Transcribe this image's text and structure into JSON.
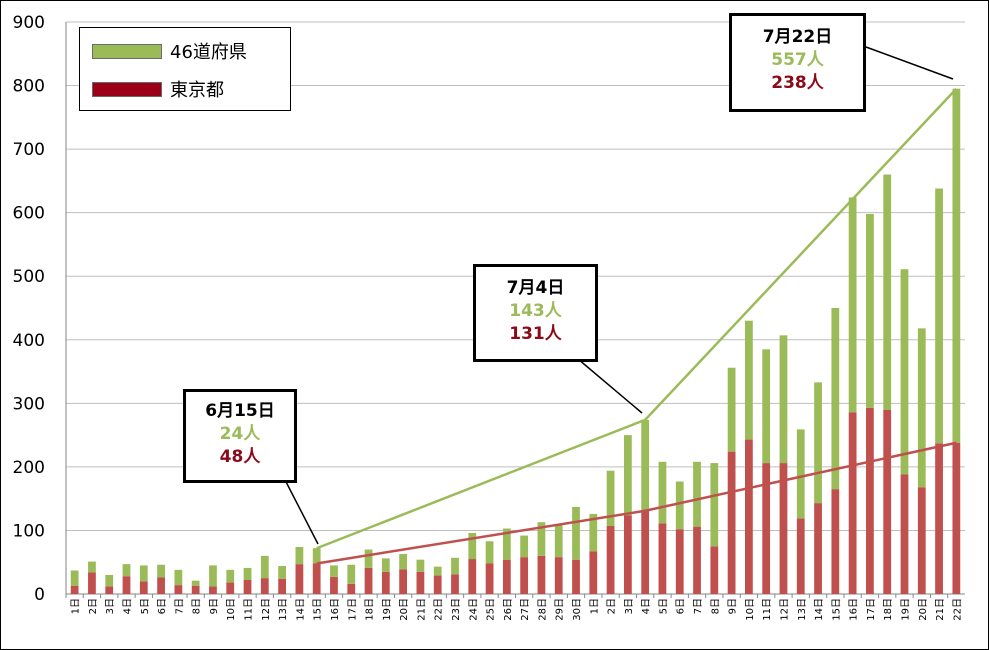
{
  "colors": {
    "prefectures": "#9bbb59",
    "tokyo": "#c0504d",
    "tokyo_text": "#8b0a1a",
    "grid": "#bfbfbf"
  },
  "legend": {
    "items": [
      {
        "label": "46道府県",
        "color": "#9bbb59"
      },
      {
        "label": "東京都",
        "color": "#9b0018"
      }
    ]
  },
  "callouts": [
    {
      "date": "6月15日",
      "prefectures": "24人",
      "tokyo": "48人"
    },
    {
      "date": "7月4日",
      "prefectures": "143人",
      "tokyo": "131人"
    },
    {
      "date": "7月22日",
      "prefectures": "557人",
      "tokyo": "238人"
    }
  ],
  "chart_data": {
    "type": "bar",
    "stacked": true,
    "ylim": [
      0,
      900
    ],
    "yticks": [
      0,
      100,
      200,
      300,
      400,
      500,
      600,
      700,
      800,
      900
    ],
    "grid": true,
    "legend_position": "top-left",
    "categories": [
      "1日",
      "2日",
      "3日",
      "4日",
      "5日",
      "6日",
      "7日",
      "8日",
      "9日",
      "10日",
      "11日",
      "12日",
      "13日",
      "14日",
      "15日",
      "16日",
      "17日",
      "18日",
      "19日",
      "20日",
      "21日",
      "22日",
      "23日",
      "24日",
      "25日",
      "26日",
      "27日",
      "28日",
      "29日",
      "30日",
      "1日",
      "2日",
      "3日",
      "4日",
      "5日",
      "6日",
      "7日",
      "8日",
      "9日",
      "10日",
      "11日",
      "12日",
      "13日",
      "14日",
      "15日",
      "16日",
      "17日",
      "18日",
      "19日",
      "20日",
      "21日",
      "22日"
    ],
    "series": [
      {
        "name": "東京都",
        "values": [
          13,
          34,
          12,
          28,
          20,
          26,
          14,
          13,
          12,
          18,
          22,
          25,
          24,
          47,
          48,
          27,
          16,
          41,
          35,
          39,
          35,
          29,
          31,
          55,
          48,
          54,
          58,
          60,
          58,
          54,
          67,
          107,
          124,
          131,
          111,
          102,
          106,
          75,
          224,
          243,
          206,
          206,
          119,
          143,
          165,
          286,
          293,
          290,
          188,
          168,
          237,
          238
        ]
      },
      {
        "name": "46道府県",
        "values": [
          24,
          17,
          18,
          19,
          25,
          20,
          24,
          8,
          33,
          20,
          19,
          35,
          20,
          27,
          24,
          18,
          30,
          29,
          21,
          24,
          19,
          14,
          26,
          41,
          35,
          49,
          34,
          53,
          50,
          83,
          59,
          87,
          126,
          143,
          97,
          75,
          102,
          131,
          132,
          187,
          179,
          201,
          140,
          190,
          285,
          338,
          305,
          370,
          323,
          250,
          401,
          557
        ]
      }
    ],
    "trend_lines": [
      {
        "name": "46道府県",
        "points": [
          [
            "6月15日",
            72
          ],
          [
            "7月4日",
            274
          ],
          [
            "7月22日",
            795
          ]
        ]
      },
      {
        "name": "東京都",
        "points": [
          [
            "6月15日",
            48
          ],
          [
            "7月4日",
            131
          ],
          [
            "7月22日",
            238
          ]
        ]
      }
    ]
  }
}
